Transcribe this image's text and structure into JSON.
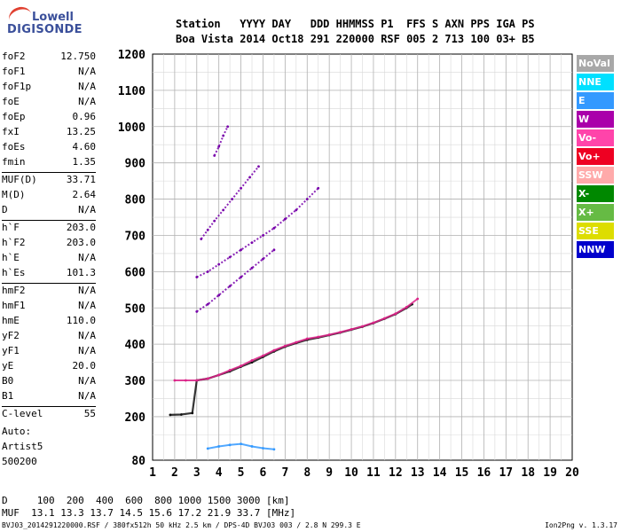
{
  "logo": {
    "line1": "Lowell",
    "line2": "DIGISONDE"
  },
  "header": {
    "line1": "Station   YYYY DAY   DDD HHMMSS P1  FFS S AXN PPS IGA PS",
    "line2": "Boa Vista 2014 Oct18 291 220000 RSF 005 2 713 100 03+ B5"
  },
  "params": [
    {
      "group": [
        {
          "k": "foF2",
          "v": "12.750"
        },
        {
          "k": "foF1",
          "v": "N/A"
        },
        {
          "k": "foF1p",
          "v": "N/A"
        },
        {
          "k": "foE",
          "v": "N/A"
        },
        {
          "k": "foEp",
          "v": "0.96"
        },
        {
          "k": "fxI",
          "v": "13.25"
        },
        {
          "k": "foEs",
          "v": "4.60"
        },
        {
          "k": "fmin",
          "v": "1.35"
        }
      ]
    },
    {
      "group": [
        {
          "k": "MUF(D)",
          "v": "33.71"
        },
        {
          "k": "M(D)",
          "v": "2.64"
        },
        {
          "k": "D",
          "v": "N/A"
        }
      ]
    },
    {
      "group": [
        {
          "k": "h`F",
          "v": "203.0"
        },
        {
          "k": "h`F2",
          "v": "203.0"
        },
        {
          "k": "h`E",
          "v": "N/A"
        },
        {
          "k": "h`Es",
          "v": "101.3"
        }
      ]
    },
    {
      "group": [
        {
          "k": "hmF2",
          "v": "N/A"
        },
        {
          "k": "hmF1",
          "v": "N/A"
        },
        {
          "k": "hmE",
          "v": "110.0"
        },
        {
          "k": "yF2",
          "v": "N/A"
        },
        {
          "k": "yF1",
          "v": "N/A"
        },
        {
          "k": "yE",
          "v": "20.0"
        },
        {
          "k": "B0",
          "v": "N/A"
        },
        {
          "k": "B1",
          "v": "N/A"
        }
      ]
    },
    {
      "group": [
        {
          "k": "C-level",
          "v": "55"
        }
      ]
    }
  ],
  "auto": {
    "l1": "Auto:",
    "l2": "Artist5",
    "l3": "500200"
  },
  "legend": [
    {
      "label": "NoVal",
      "color": "#a8a8a8"
    },
    {
      "label": "NNE",
      "color": "#00e0ff"
    },
    {
      "label": "E",
      "color": "#3399ff"
    },
    {
      "label": "W",
      "color": "#aa00aa"
    },
    {
      "label": "Vo-",
      "color": "#ff44aa"
    },
    {
      "label": "Vo+",
      "color": "#ee0022"
    },
    {
      "label": "SSW",
      "color": "#ffaaaa"
    },
    {
      "label": "X-",
      "color": "#008800"
    },
    {
      "label": "X+",
      "color": "#66bb44"
    },
    {
      "label": "SSE",
      "color": "#dddd00"
    },
    {
      "label": "NNW",
      "color": "#0000cc"
    }
  ],
  "bottom": {
    "d_line": "D     100  200  400  600  800 1000 1500 3000 [km]",
    "muf_line": "MUF  13.1 13.3 13.7 14.5 15.6 17.2 21.9 33.7 [MHz]"
  },
  "footer": {
    "left": "BVJ03_2014291220000.RSF / 380fx512h 50 kHz 2.5 km / DPS-4D BVJ03 003 / 2.8 N 299.3 E",
    "right": "Ion2Png v. 1.3.17"
  },
  "chart_data": {
    "type": "scatter",
    "xlim": [
      1,
      20
    ],
    "ylim": [
      80,
      1200
    ],
    "x_ticks": [
      1,
      2,
      3,
      4,
      5,
      6,
      7,
      8,
      9,
      10,
      11,
      12,
      13,
      14,
      15,
      16,
      17,
      18,
      19,
      20
    ],
    "y_ticks": [
      80,
      200,
      300,
      400,
      500,
      600,
      700,
      800,
      900,
      1000,
      1100,
      1200
    ],
    "grid": true,
    "legend_placement": "right",
    "traces": [
      {
        "name": "X-",
        "color": "#111111",
        "x": [
          1.8,
          2.3,
          2.8,
          3.0,
          3.5,
          4.0,
          4.5,
          5.0,
          5.5,
          6.0,
          6.5,
          7.0,
          7.5,
          8.0,
          8.5,
          9.0,
          9.5,
          10.0,
          10.5,
          11.0,
          11.5,
          12.0,
          12.5,
          12.75
        ],
        "y": [
          205,
          206,
          210,
          300,
          305,
          315,
          325,
          338,
          350,
          365,
          380,
          393,
          403,
          412,
          418,
          425,
          432,
          440,
          448,
          458,
          470,
          483,
          500,
          510
        ]
      },
      {
        "name": "Vo-",
        "color": "#dd2288",
        "x": [
          2.0,
          2.5,
          3.0,
          3.5,
          4.0,
          4.5,
          5.0,
          5.5,
          6.0,
          6.5,
          7.0,
          7.5,
          8.0,
          8.5,
          9.0,
          9.5,
          10.0,
          10.5,
          11.0,
          11.5,
          12.0,
          12.5,
          13.0
        ],
        "y": [
          300,
          300,
          300,
          305,
          315,
          328,
          340,
          355,
          368,
          383,
          395,
          405,
          415,
          420,
          426,
          433,
          441,
          449,
          459,
          471,
          484,
          502,
          525
        ]
      },
      {
        "name": "W",
        "color": "#7700aa",
        "x": [
          3.0,
          3.5,
          4.0,
          4.5,
          5.0,
          5.5,
          6.0,
          6.5
        ],
        "y": [
          490,
          510,
          535,
          560,
          585,
          610,
          635,
          660
        ]
      },
      {
        "name": "W",
        "color": "#7700aa",
        "x": [
          3.0,
          3.5,
          4.0,
          4.5,
          5.0,
          5.5,
          6.0,
          6.5,
          7.0,
          7.5,
          8.0,
          8.5
        ],
        "y": [
          585,
          600,
          620,
          640,
          660,
          680,
          700,
          720,
          745,
          770,
          800,
          830
        ]
      },
      {
        "name": "W",
        "color": "#7700aa",
        "x": [
          3.2,
          3.5,
          3.8,
          4.2,
          4.6,
          5.0,
          5.4,
          5.8
        ],
        "y": [
          690,
          715,
          740,
          770,
          800,
          830,
          860,
          890
        ]
      },
      {
        "name": "W",
        "color": "#7700aa",
        "x": [
          3.8,
          4.0,
          4.2,
          4.4
        ],
        "y": [
          920,
          945,
          975,
          1000
        ]
      },
      {
        "name": "E",
        "color": "#3399ff",
        "x": [
          3.5,
          4.0,
          4.5,
          5.0,
          5.5,
          6.0,
          6.5
        ],
        "y": [
          112,
          118,
          122,
          125,
          118,
          113,
          110
        ]
      }
    ]
  }
}
